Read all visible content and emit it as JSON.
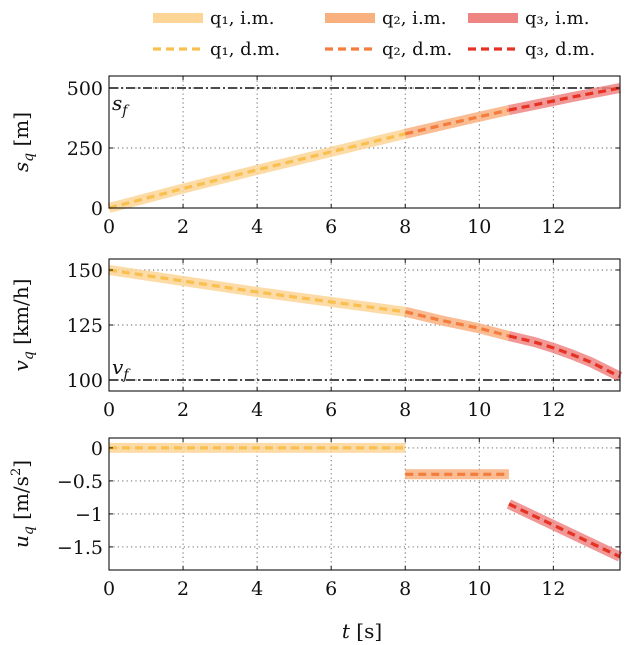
{
  "chart_data": {
    "type": "line",
    "xlabel": "t [s]",
    "xlim": [
      0,
      13.8
    ],
    "xticks": [
      0,
      2,
      4,
      6,
      8,
      10,
      12
    ],
    "legend": {
      "position": "top",
      "entries": [
        {
          "name": "q1, i.m.",
          "label": "q₁, i.m.",
          "color": "#fdd597",
          "style": "band"
        },
        {
          "name": "q2, i.m.",
          "label": "q₂, i.m.",
          "color": "#f9b07f",
          "style": "band"
        },
        {
          "name": "q3, i.m.",
          "label": "q₃, i.m.",
          "color": "#ee8583",
          "style": "band"
        },
        {
          "name": "q1, d.m.",
          "label": "q₁, d.m.",
          "color": "#f9c050",
          "style": "dashed"
        },
        {
          "name": "q2, d.m.",
          "label": "q₂, d.m.",
          "color": "#f47c3c",
          "style": "dashed"
        },
        {
          "name": "q3, d.m.",
          "label": "q₃, d.m.",
          "color": "#e53222",
          "style": "dashed"
        }
      ]
    },
    "panels": [
      {
        "id": "position",
        "ylabel": "s_q [m]",
        "ylabel_text": "s",
        "ylabel_sub": "q",
        "ylabel_unit": " [m]",
        "ylim": [
          0,
          550
        ],
        "yticks": [
          0,
          250,
          500
        ],
        "yticklabels": [
          "0",
          "250",
          "500"
        ],
        "reference": {
          "label": "s",
          "sub": "f",
          "value": 500
        },
        "series": [
          {
            "phase": "q1",
            "x": [
              0,
              2,
              4,
              6,
              8
            ],
            "y": [
              0,
              81,
              159,
              234,
              309
            ]
          },
          {
            "phase": "q2",
            "x": [
              8,
              9,
              10,
              10.8
            ],
            "y": [
              309,
              345,
              380,
              408
            ]
          },
          {
            "phase": "q3",
            "x": [
              10.8,
              11.5,
              12.5,
              13.8
            ],
            "y": [
              408,
              430,
              462,
              500
            ]
          }
        ]
      },
      {
        "id": "velocity",
        "ylabel": "v_q [km/h]",
        "ylabel_text": "v",
        "ylabel_sub": "q",
        "ylabel_unit": " [km/h]",
        "ylim": [
          95,
          155
        ],
        "yticks": [
          100,
          125,
          150
        ],
        "yticklabels": [
          "100",
          "125",
          "150"
        ],
        "reference": {
          "label": "v",
          "sub": "f",
          "value": 100
        },
        "series": [
          {
            "phase": "q1",
            "x": [
              0,
              2,
              4,
              6,
              8
            ],
            "y": [
              150,
              145,
              140,
              135.5,
              131
            ]
          },
          {
            "phase": "q2",
            "x": [
              8,
              9,
              10,
              10.8
            ],
            "y": [
              131,
              127,
              123.5,
              120
            ]
          },
          {
            "phase": "q3",
            "x": [
              10.8,
              11.5,
              12,
              12.5,
              13,
              13.8
            ],
            "y": [
              120,
              117.2,
              114.6,
              111.6,
              108.2,
              101.5
            ]
          }
        ]
      },
      {
        "id": "acceleration",
        "ylabel": "u_q [m/s^2]",
        "ylabel_text": "u",
        "ylabel_sub": "q",
        "ylabel_unit": " [m/s",
        "ylabel_sup": "2",
        "ylabel_close": "]",
        "ylim": [
          -1.85,
          0.15
        ],
        "yticks": [
          0,
          -0.5,
          -1,
          -1.5
        ],
        "yticklabels": [
          "0",
          "−0.5",
          "−1",
          "−1.5"
        ],
        "series": [
          {
            "phase": "q1",
            "x": [
              0,
              8
            ],
            "y": [
              0,
              0
            ]
          },
          {
            "phase": "q2",
            "x": [
              8,
              10.8
            ],
            "y": [
              -0.4,
              -0.4
            ]
          },
          {
            "phase": "q3",
            "x": [
              10.8,
              13.8
            ],
            "y": [
              -0.85,
              -1.65
            ]
          }
        ]
      }
    ]
  }
}
